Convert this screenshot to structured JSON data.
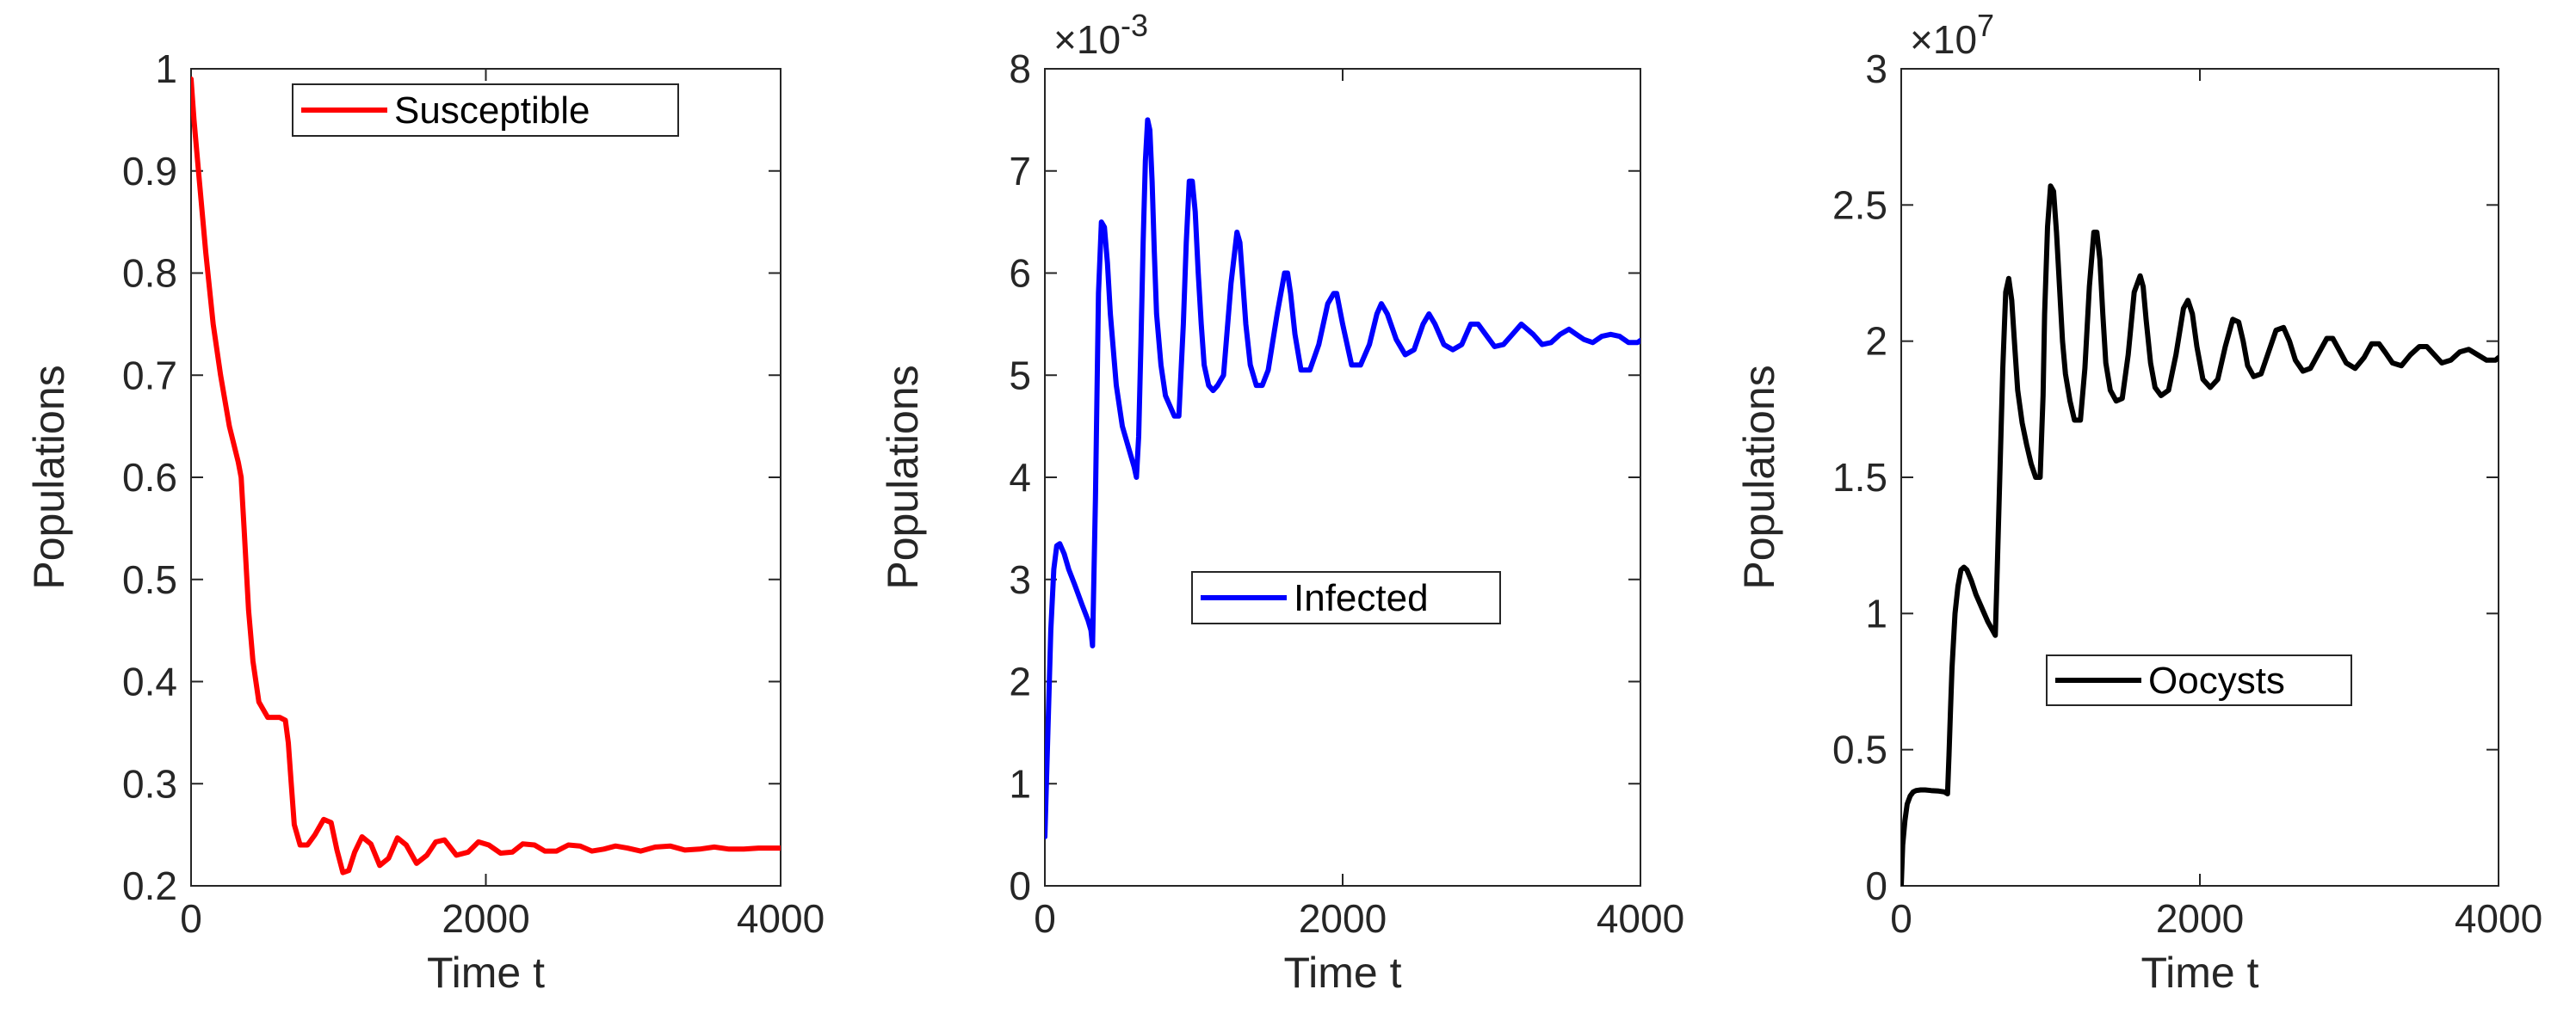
{
  "chart_data": [
    {
      "type": "line",
      "title": "",
      "xlabel": "Time t",
      "ylabel": "Populations",
      "xlim": [
        0,
        4000
      ],
      "ylim": [
        0.2,
        1
      ],
      "xticks": [
        0,
        2000,
        4000
      ],
      "xtick_labels": [
        "0",
        "2000",
        "4000"
      ],
      "yticks": [
        0.2,
        0.3,
        0.4,
        0.5,
        0.6,
        0.7,
        0.8,
        0.9,
        1
      ],
      "ytick_labels": [
        "0.2",
        "0.3",
        "0.4",
        "0.5",
        "0.6",
        "0.7",
        "0.8",
        "0.9",
        "1"
      ],
      "exponent_label": null,
      "legend_position": "top",
      "series": [
        {
          "name": "Susceptible",
          "color": "#ff0000",
          "x": [
            0,
            20,
            50,
            100,
            150,
            200,
            260,
            320,
            340,
            360,
            390,
            420,
            460,
            520,
            560,
            600,
            640,
            660,
            680,
            700,
            740,
            790,
            840,
            900,
            950,
            990,
            1030,
            1070,
            1110,
            1160,
            1220,
            1280,
            1340,
            1400,
            1460,
            1530,
            1600,
            1660,
            1720,
            1800,
            1880,
            1950,
            2020,
            2100,
            2180,
            2250,
            2330,
            2400,
            2480,
            2560,
            2640,
            2720,
            2800,
            2880,
            2960,
            3050,
            3150,
            3250,
            3350,
            3450,
            3550,
            3650,
            3750,
            3850,
            4000
          ],
          "y": [
            0.99,
            0.95,
            0.9,
            0.82,
            0.75,
            0.7,
            0.65,
            0.615,
            0.6,
            0.55,
            0.47,
            0.42,
            0.38,
            0.365,
            0.365,
            0.365,
            0.362,
            0.34,
            0.3,
            0.26,
            0.24,
            0.24,
            0.25,
            0.265,
            0.262,
            0.235,
            0.213,
            0.215,
            0.233,
            0.248,
            0.241,
            0.22,
            0.227,
            0.247,
            0.24,
            0.222,
            0.23,
            0.243,
            0.245,
            0.23,
            0.233,
            0.243,
            0.24,
            0.232,
            0.233,
            0.241,
            0.24,
            0.234,
            0.234,
            0.24,
            0.239,
            0.234,
            0.236,
            0.239,
            0.237,
            0.234,
            0.238,
            0.239,
            0.235,
            0.236,
            0.238,
            0.236,
            0.236,
            0.237,
            0.237
          ]
        }
      ]
    },
    {
      "type": "line",
      "title": "",
      "xlabel": "Time t",
      "ylabel": "Populations",
      "xlim": [
        0,
        4000
      ],
      "ylim": [
        0,
        0.008
      ],
      "xticks": [
        0,
        2000,
        4000
      ],
      "xtick_labels": [
        "0",
        "2000",
        "4000"
      ],
      "yticks": [
        0,
        0.001,
        0.002,
        0.003,
        0.004,
        0.005,
        0.006,
        0.007,
        0.008
      ],
      "ytick_labels": [
        "0",
        "1",
        "2",
        "3",
        "4",
        "5",
        "6",
        "7",
        "8"
      ],
      "exponent_label": "10^-3",
      "legend_position": "center",
      "series": [
        {
          "name": "Infected",
          "color": "#0000ff",
          "x": [
            0,
            20,
            40,
            60,
            80,
            100,
            130,
            160,
            200,
            250,
            290,
            310,
            320,
            340,
            360,
            380,
            400,
            420,
            440,
            480,
            520,
            560,
            600,
            615,
            630,
            645,
            660,
            675,
            690,
            705,
            720,
            735,
            750,
            780,
            810,
            840,
            870,
            900,
            930,
            950,
            970,
            990,
            1010,
            1030,
            1050,
            1070,
            1100,
            1130,
            1160,
            1200,
            1250,
            1290,
            1310,
            1330,
            1350,
            1380,
            1420,
            1460,
            1500,
            1560,
            1610,
            1630,
            1650,
            1680,
            1720,
            1780,
            1840,
            1900,
            1940,
            1960,
            2000,
            2060,
            2120,
            2180,
            2230,
            2260,
            2300,
            2360,
            2420,
            2480,
            2540,
            2580,
            2620,
            2680,
            2740,
            2800,
            2860,
            2910,
            2960,
            3020,
            3080,
            3140,
            3200,
            3240,
            3280,
            3340,
            3400,
            3460,
            3520,
            3570,
            3620,
            3680,
            3740,
            3800,
            3860,
            3920,
            3980,
            4000
          ],
          "y": [
            0.00048,
            0.0015,
            0.0025,
            0.0031,
            0.00333,
            0.00335,
            0.00325,
            0.0031,
            0.00295,
            0.00275,
            0.0026,
            0.0025,
            0.00235,
            0.0038,
            0.0058,
            0.0065,
            0.00645,
            0.0061,
            0.0056,
            0.0049,
            0.0045,
            0.0043,
            0.0041,
            0.004,
            0.0044,
            0.0053,
            0.0063,
            0.0071,
            0.0075,
            0.0074,
            0.0069,
            0.0062,
            0.0056,
            0.0051,
            0.0048,
            0.0047,
            0.0046,
            0.0046,
            0.0055,
            0.0063,
            0.0069,
            0.0069,
            0.0066,
            0.006,
            0.0055,
            0.0051,
            0.0049,
            0.00485,
            0.0049,
            0.005,
            0.0059,
            0.0064,
            0.0063,
            0.0059,
            0.0055,
            0.0051,
            0.0049,
            0.0049,
            0.00505,
            0.0056,
            0.006,
            0.006,
            0.0058,
            0.0054,
            0.00505,
            0.00505,
            0.0053,
            0.0057,
            0.0058,
            0.0058,
            0.0055,
            0.0051,
            0.0051,
            0.0053,
            0.0056,
            0.0057,
            0.0056,
            0.00535,
            0.0052,
            0.00525,
            0.0055,
            0.0056,
            0.0055,
            0.0053,
            0.00525,
            0.0053,
            0.0055,
            0.0055,
            0.0054,
            0.00528,
            0.0053,
            0.0054,
            0.0055,
            0.00545,
            0.0054,
            0.0053,
            0.00532,
            0.0054,
            0.00545,
            0.0054,
            0.00535,
            0.00532,
            0.00538,
            0.0054,
            0.00538,
            0.00532,
            0.00532,
            0.00534
          ]
        }
      ]
    },
    {
      "type": "line",
      "title": "",
      "xlabel": "Time t",
      "ylabel": "Populations",
      "xlim": [
        0,
        4000
      ],
      "ylim": [
        0,
        30000000
      ],
      "xticks": [
        0,
        2000,
        4000
      ],
      "xtick_labels": [
        "0",
        "2000",
        "4000"
      ],
      "yticks": [
        0,
        5000000,
        10000000,
        15000000,
        20000000,
        25000000,
        30000000
      ],
      "ytick_labels": [
        "0",
        "0.5",
        "1",
        "1.5",
        "2",
        "2.5",
        "3"
      ],
      "exponent_label": "10^7",
      "legend_position": "center",
      "series": [
        {
          "name": "Oocysts",
          "color": "#000000",
          "x": [
            0,
            10,
            25,
            40,
            60,
            80,
            100,
            130,
            160,
            200,
            250,
            290,
            310,
            320,
            330,
            340,
            360,
            380,
            400,
            420,
            440,
            470,
            500,
            540,
            580,
            610,
            630,
            640,
            660,
            680,
            700,
            720,
            740,
            760,
            780,
            810,
            840,
            870,
            900,
            930,
            950,
            960,
            980,
            1000,
            1020,
            1040,
            1060,
            1080,
            1100,
            1130,
            1160,
            1200,
            1230,
            1260,
            1290,
            1310,
            1330,
            1350,
            1370,
            1400,
            1440,
            1480,
            1520,
            1560,
            1600,
            1620,
            1640,
            1670,
            1700,
            1740,
            1790,
            1840,
            1890,
            1920,
            1950,
            1980,
            2020,
            2070,
            2120,
            2170,
            2220,
            2260,
            2290,
            2320,
            2360,
            2410,
            2460,
            2510,
            2560,
            2600,
            2640,
            2690,
            2740,
            2800,
            2850,
            2890,
            2930,
            2980,
            3040,
            3100,
            3150,
            3200,
            3240,
            3290,
            3350,
            3410,
            3470,
            3520,
            3570,
            3620,
            3680,
            3740,
            3800,
            3860,
            3920,
            3980,
            4000
          ],
          "y": [
            0,
            1500000,
            2400000,
            3000000,
            3300000,
            3450000,
            3500000,
            3520000,
            3520000,
            3500000,
            3480000,
            3450000,
            3380000,
            4800000,
            6500000,
            8000000,
            10000000,
            11000000,
            11600000,
            11700000,
            11600000,
            11200000,
            10700000,
            10200000,
            9700000,
            9400000,
            9200000,
            11000000,
            15000000,
            19000000,
            21800000,
            22300000,
            21500000,
            19800000,
            18200000,
            17000000,
            16200000,
            15500000,
            15000000,
            15000000,
            18000000,
            21000000,
            24200000,
            25700000,
            25500000,
            24000000,
            22000000,
            20000000,
            18800000,
            17800000,
            17100000,
            17100000,
            19000000,
            22000000,
            24000000,
            24000000,
            23000000,
            21000000,
            19200000,
            18200000,
            17800000,
            17900000,
            19500000,
            21800000,
            22400000,
            22000000,
            20800000,
            19200000,
            18300000,
            18000000,
            18200000,
            19500000,
            21200000,
            21500000,
            21000000,
            19800000,
            18600000,
            18300000,
            18600000,
            19800000,
            20800000,
            20700000,
            20000000,
            19100000,
            18700000,
            18800000,
            19600000,
            20400000,
            20500000,
            20000000,
            19300000,
            18900000,
            19000000,
            19600000,
            20100000,
            20100000,
            19700000,
            19200000,
            19000000,
            19400000,
            19900000,
            19900000,
            19600000,
            19200000,
            19100000,
            19500000,
            19800000,
            19800000,
            19500000,
            19200000,
            19300000,
            19600000,
            19700000,
            19500000,
            19300000,
            19300000,
            19400000
          ]
        }
      ]
    }
  ]
}
